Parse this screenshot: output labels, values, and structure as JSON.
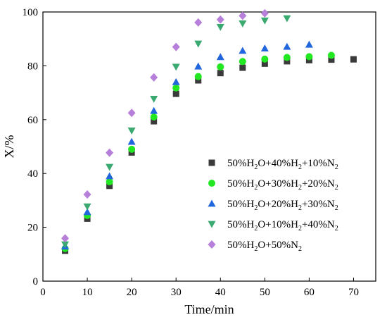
{
  "chart_data": {
    "type": "scatter",
    "title": "",
    "xlabel": "Time/min",
    "ylabel": "X/%",
    "xlim": [
      0,
      75
    ],
    "ylim": [
      0,
      100
    ],
    "xticks": [
      0,
      10,
      20,
      30,
      40,
      50,
      60,
      70
    ],
    "yticks": [
      0,
      20,
      40,
      60,
      80,
      100
    ],
    "grid": false,
    "legend_position": "right",
    "series": [
      {
        "name": "50%H2O+40%H2+10%N2",
        "legend_parts": [
          [
            "50%H",
            ""
          ],
          [
            "2",
            "sub"
          ],
          [
            "O+40%H",
            ""
          ],
          [
            "2",
            "sub"
          ],
          [
            "+10%N",
            ""
          ],
          [
            "2",
            "sub"
          ]
        ],
        "marker": "square",
        "color": "#3a3a3a",
        "x": [
          5,
          10,
          15,
          20,
          25,
          30,
          35,
          40,
          45,
          50,
          55,
          60,
          65,
          70
        ],
        "y": [
          11.3,
          23.2,
          35.4,
          47.8,
          59.4,
          69.6,
          74.6,
          77.3,
          79.3,
          80.8,
          81.7,
          82.1,
          82.3,
          82.4
        ]
      },
      {
        "name": "50%H2O+30%H2+20%N2",
        "legend_parts": [
          [
            "50%H",
            ""
          ],
          [
            "2",
            "sub"
          ],
          [
            "O+30%H",
            ""
          ],
          [
            "2",
            "sub"
          ],
          [
            "+20%N",
            ""
          ],
          [
            "2",
            "sub"
          ]
        ],
        "marker": "circle",
        "color": "#22e822",
        "x": [
          5,
          10,
          15,
          20,
          25,
          30,
          35,
          40,
          45,
          50,
          55,
          60,
          65
        ],
        "y": [
          12.1,
          24.4,
          36.9,
          49.0,
          61.0,
          71.8,
          76.0,
          79.6,
          81.6,
          82.5,
          83.1,
          83.4,
          83.9
        ]
      },
      {
        "name": "50%H2O+20%H2+30%N2",
        "legend_parts": [
          [
            "50%H",
            ""
          ],
          [
            "2",
            "sub"
          ],
          [
            "O+20%H",
            ""
          ],
          [
            "2",
            "sub"
          ],
          [
            "+30%N",
            ""
          ],
          [
            "2",
            "sub"
          ]
        ],
        "marker": "triangle-up",
        "color": "#2266dd",
        "x": [
          5,
          10,
          15,
          20,
          25,
          30,
          35,
          40,
          45,
          50,
          55,
          60
        ],
        "y": [
          12.9,
          25.7,
          39.0,
          51.8,
          63.3,
          74.0,
          79.8,
          83.3,
          85.6,
          86.5,
          87.1,
          87.9
        ]
      },
      {
        "name": "50%H2O+10%H2+40%N2",
        "legend_parts": [
          [
            "50%H",
            ""
          ],
          [
            "2",
            "sub"
          ],
          [
            "O+10%H",
            ""
          ],
          [
            "2",
            "sub"
          ],
          [
            "+40%N",
            ""
          ],
          [
            "2",
            "sub"
          ]
        ],
        "marker": "triangle-down",
        "color": "#3aaa70",
        "x": [
          5,
          10,
          15,
          20,
          25,
          30,
          35,
          40,
          45,
          50,
          55
        ],
        "y": [
          13.6,
          27.7,
          42.4,
          55.9,
          67.7,
          79.6,
          88.2,
          94.4,
          95.7,
          96.8,
          97.6
        ]
      },
      {
        "name": "50%H2O+50%N2",
        "legend_parts": [
          [
            "50%H",
            ""
          ],
          [
            "2",
            "sub"
          ],
          [
            "O+50%N",
            ""
          ],
          [
            "2",
            "sub"
          ]
        ],
        "marker": "diamond",
        "color": "#b67fd9",
        "x": [
          5,
          10,
          15,
          20,
          25,
          30,
          35,
          40,
          45,
          50
        ],
        "y": [
          15.9,
          32.2,
          47.7,
          62.5,
          75.7,
          87.0,
          96.1,
          97.2,
          98.6,
          99.5
        ]
      }
    ]
  }
}
